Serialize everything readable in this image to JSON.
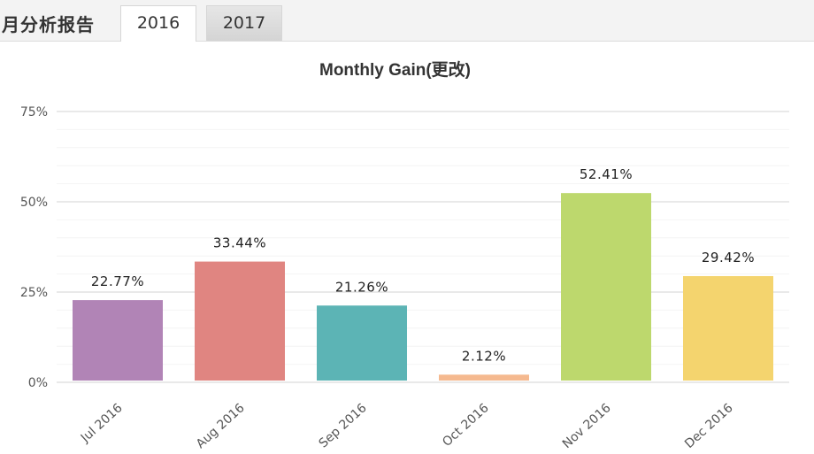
{
  "header": {
    "title": "月分析报告",
    "tabs": [
      {
        "label": "2016",
        "active": true
      },
      {
        "label": "2017",
        "active": false
      }
    ]
  },
  "chart_data": {
    "type": "bar",
    "title": "Monthly Gain(更改)",
    "categories": [
      "Jul 2016",
      "Aug 2016",
      "Sep 2016",
      "Oct 2016",
      "Nov 2016",
      "Dec 2016"
    ],
    "values": [
      22.77,
      33.44,
      21.26,
      2.12,
      52.41,
      29.42
    ],
    "data_labels": [
      "22.77%",
      "33.44%",
      "21.26%",
      "2.12%",
      "52.41%",
      "29.42%"
    ],
    "colors": [
      "#b184b6",
      "#e08581",
      "#5cb4b5",
      "#f5b98f",
      "#bdd86d",
      "#f4d46e"
    ],
    "yticks": [
      0,
      25,
      50,
      75
    ],
    "ytick_labels": [
      "0%",
      "25%",
      "50%",
      "75%"
    ],
    "ylim": [
      0,
      75
    ],
    "xlabel": "",
    "ylabel": "",
    "grid": true,
    "legend": "none"
  }
}
